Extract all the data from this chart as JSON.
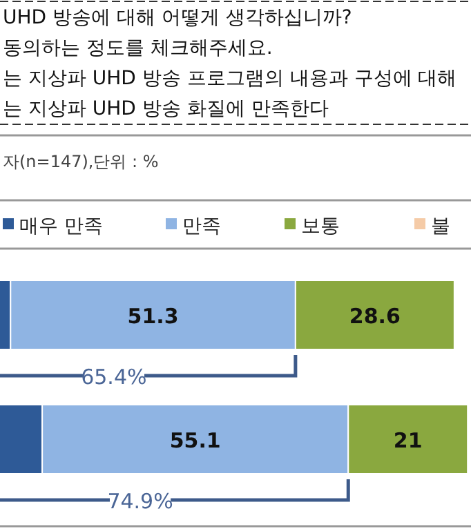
{
  "chart_data": {
    "type": "bar",
    "orientation": "horizontal",
    "stacked": true,
    "subtitle": "자(n=147),단위 : %",
    "annotations": [
      "UHD 방송에 대해 어떻게 생각하십니까?",
      "동의하는 정도를 체크해주세요.",
      "는 지상파 UHD 방송 프로그램의 내용과 구성에 대해",
      "는 지상파 UHD 방송 화질에 만족한다",
      "65.4%",
      "74.9%"
    ],
    "categories": [
      null,
      null
    ],
    "xlim": [
      12.2,
      97
    ],
    "legend": "top",
    "series": [
      {
        "name": "매우 만족",
        "color": "#2e5a97",
        "values": [
          14.1,
          19.8
        ],
        "value_labels": [
          null,
          null
        ]
      },
      {
        "name": "만족",
        "color": "#8fb4e3",
        "values": [
          51.3,
          55.1
        ],
        "value_labels": [
          "51.3",
          "55.1"
        ]
      },
      {
        "name": "보통",
        "color": "#8aa83f",
        "values": [
          28.6,
          21.5
        ],
        "value_labels": [
          "28.6",
          "21"
        ]
      },
      {
        "name": "불",
        "color": "#f5cba7",
        "values": [
          null,
          null
        ]
      }
    ]
  }
}
